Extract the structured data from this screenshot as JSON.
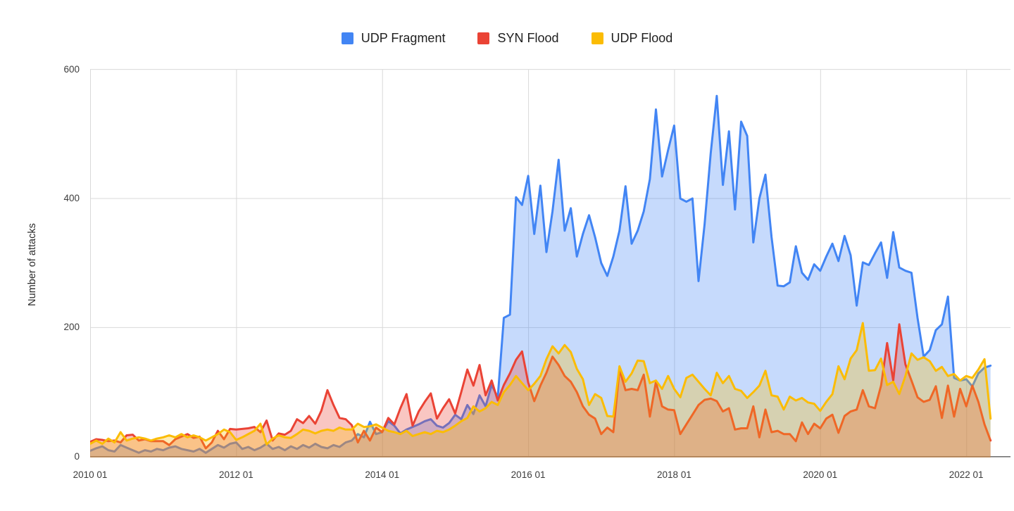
{
  "legend": {
    "items": [
      {
        "label": "UDP Fragment",
        "color": "#4285F4"
      },
      {
        "label": "SYN Flood",
        "color": "#EA4335"
      },
      {
        "label": "UDP Flood",
        "color": "#FBBC04"
      }
    ]
  },
  "chart_data": {
    "type": "area",
    "title": "",
    "xlabel": "",
    "ylabel": "Number of attacks",
    "ylim": [
      0,
      600
    ],
    "y_ticks": [
      0,
      200,
      400,
      600
    ],
    "x_tick_labels": [
      "2010 01",
      "2012 01",
      "2014 01",
      "2016 01",
      "2018 01",
      "2020 01",
      "2022 01"
    ],
    "x_tick_month_indices": [
      0,
      24,
      48,
      72,
      96,
      120,
      144
    ],
    "start_month": "2010-01",
    "end_month": "2022-05",
    "months_total": 149,
    "grid": true,
    "legend_position": "top",
    "fill_opacity": 0.3,
    "line_width": 3,
    "grid_color": "#d9d9d9",
    "baseline_color": "#757575",
    "series": [
      {
        "name": "UDP Fragment",
        "color": "#4285F4",
        "values": [
          9,
          13,
          16,
          10,
          8,
          18,
          14,
          10,
          6,
          10,
          8,
          12,
          10,
          14,
          16,
          12,
          10,
          8,
          12,
          6,
          12,
          18,
          14,
          20,
          22,
          12,
          15,
          10,
          14,
          20,
          12,
          15,
          10,
          16,
          12,
          18,
          14,
          20,
          15,
          13,
          18,
          15,
          22,
          25,
          35,
          30,
          54,
          35,
          38,
          55,
          48,
          36,
          42,
          46,
          50,
          55,
          58,
          48,
          45,
          52,
          65,
          58,
          80,
          66,
          95,
          78,
          111,
          92,
          215,
          220,
          402,
          390,
          435,
          345,
          420,
          317,
          380,
          460,
          350,
          385,
          310,
          345,
          374,
          340,
          300,
          280,
          310,
          350,
          419,
          330,
          350,
          380,
          430,
          538,
          434,
          475,
          513,
          400,
          395,
          400,
          272,
          360,
          470,
          559,
          421,
          504,
          383,
          519,
          497,
          332,
          400,
          437,
          340,
          265,
          264,
          270,
          326,
          285,
          274,
          298,
          288,
          310,
          330,
          303,
          342,
          312,
          234,
          301,
          297,
          315,
          332,
          277,
          348,
          293,
          288,
          285,
          215,
          155,
          165,
          196,
          205,
          248,
          122,
          118,
          120,
          109,
          129,
          138,
          141
        ]
      },
      {
        "name": "SYN Flood",
        "color": "#EA4335",
        "values": [
          23,
          27,
          26,
          24,
          25,
          22,
          33,
          34,
          25,
          27,
          24,
          24,
          24,
          18,
          27,
          31,
          35,
          29,
          31,
          13,
          22,
          40,
          27,
          43,
          42,
          43,
          44,
          46,
          38,
          56,
          25,
          36,
          34,
          40,
          58,
          52,
          63,
          51,
          71,
          103,
          80,
          60,
          58,
          49,
          22,
          40,
          25,
          45,
          38,
          60,
          50,
          75,
          97,
          48,
          70,
          85,
          98,
          59,
          75,
          89,
          67,
          100,
          135,
          110,
          142,
          95,
          118,
          87,
          111,
          129,
          150,
          163,
          115,
          86,
          110,
          130,
          155,
          142,
          125,
          116,
          100,
          78,
          65,
          59,
          35,
          45,
          38,
          135,
          103,
          105,
          103,
          127,
          62,
          116,
          78,
          73,
          72,
          35,
          50,
          65,
          80,
          88,
          90,
          86,
          70,
          75,
          42,
          44,
          44,
          78,
          30,
          73,
          38,
          40,
          35,
          35,
          24,
          53,
          35,
          51,
          44,
          59,
          65,
          37,
          63,
          70,
          73,
          103,
          78,
          75,
          110,
          176,
          118,
          205,
          143,
          118,
          92,
          85,
          88,
          109,
          60,
          110,
          62,
          105,
          78,
          110,
          85,
          50,
          25
        ]
      },
      {
        "name": "UDP Flood",
        "color": "#FBBC04",
        "values": [
          20,
          25,
          20,
          28,
          22,
          38,
          25,
          28,
          30,
          28,
          25,
          28,
          30,
          33,
          30,
          35,
          30,
          33,
          30,
          25,
          30,
          35,
          42,
          38,
          26,
          30,
          35,
          40,
          51,
          19,
          28,
          33,
          30,
          29,
          35,
          42,
          40,
          36,
          40,
          42,
          40,
          45,
          42,
          42,
          51,
          46,
          47,
          50,
          45,
          40,
          38,
          35,
          40,
          32,
          35,
          38,
          35,
          40,
          38,
          42,
          48,
          55,
          60,
          78,
          70,
          75,
          85,
          80,
          100,
          111,
          125,
          114,
          103,
          113,
          125,
          151,
          171,
          160,
          173,
          162,
          136,
          120,
          80,
          97,
          91,
          63,
          62,
          140,
          116,
          129,
          149,
          148,
          114,
          118,
          105,
          125,
          105,
          92,
          122,
          127,
          116,
          105,
          95,
          130,
          114,
          125,
          105,
          102,
          91,
          100,
          110,
          133,
          95,
          93,
          73,
          93,
          87,
          91,
          84,
          82,
          71,
          85,
          97,
          140,
          120,
          152,
          165,
          207,
          133,
          134,
          152,
          111,
          116,
          97,
          125,
          160,
          150,
          154,
          148,
          133,
          139,
          125,
          128,
          118,
          125,
          122,
          135,
          151,
          59
        ]
      }
    ]
  }
}
